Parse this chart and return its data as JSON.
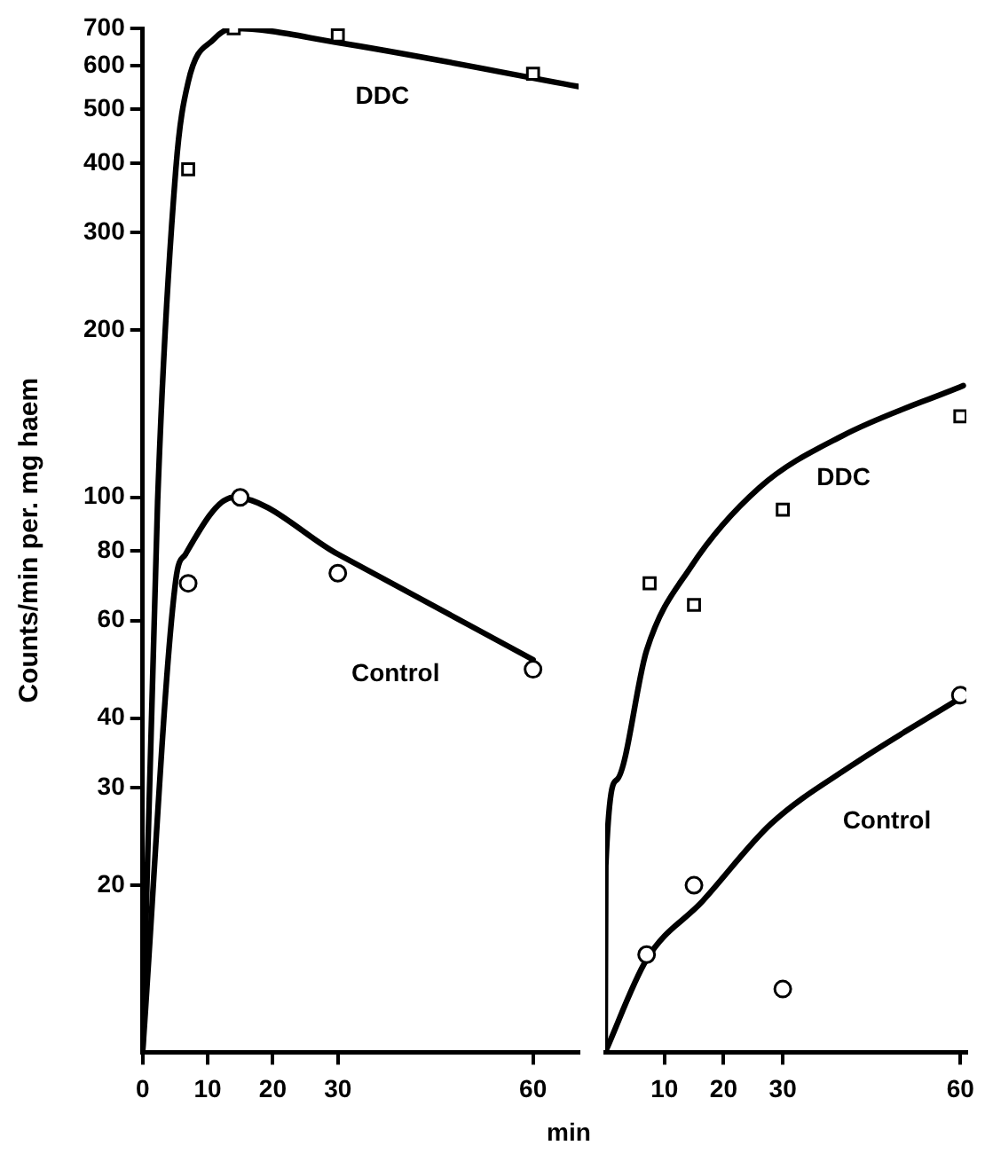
{
  "chart_data": [
    {
      "type": "scatter",
      "ylabel": "Counts/min per. mg haem",
      "xlabel": "min",
      "log": "y",
      "grid": false,
      "legend": false,
      "xlim": [
        0,
        67
      ],
      "xticks": [
        0,
        10,
        20,
        30,
        60
      ],
      "ylim": [
        10,
        700
      ],
      "yticks": [
        20,
        30,
        40,
        60,
        80,
        100,
        200,
        300,
        400,
        500,
        600,
        700
      ],
      "series": [
        {
          "type": "scatter",
          "marker": "square",
          "color": "#000000",
          "x": [
            7,
            14,
            30,
            60
          ],
          "values": [
            390,
            700,
            680,
            580
          ]
        },
        {
          "type": "scatter",
          "marker": "circle",
          "color": "#000000",
          "x": [
            7,
            15,
            30,
            60
          ],
          "values": [
            70,
            100,
            73,
            49
          ]
        },
        {
          "type": "line",
          "marker": "none",
          "name": "DDC",
          "color": "#000000",
          "x": [
            0,
            2.3,
            5.1,
            7,
            11,
            14,
            30,
            67
          ],
          "values": [
            10,
            98,
            390,
            560,
            670,
            700,
            660,
            550
          ]
        },
        {
          "type": "line",
          "marker": "none",
          "name": "Control",
          "color": "#000000",
          "x": [
            0,
            5.1,
            6.6,
            14,
            30,
            60
          ],
          "values": [
            10,
            71,
            79,
            100,
            79,
            51
          ]
        }
      ]
    },
    {
      "type": "scatter",
      "log": "y",
      "grid": false,
      "legend": false,
      "tick_labels": "x",
      "xlim": [
        0,
        61
      ],
      "xticks": [
        10,
        20,
        30,
        60
      ],
      "ylim": [
        10,
        700
      ],
      "series": [
        {
          "type": "scatter",
          "marker": "square",
          "color": "#000000",
          "x": [
            7.5,
            15,
            30,
            60
          ],
          "values": [
            70,
            64,
            95,
            140
          ]
        },
        {
          "type": "scatter",
          "marker": "circle",
          "color": "#000000",
          "x": [
            7,
            15,
            30,
            60
          ],
          "values": [
            15,
            20,
            13,
            44
          ]
        },
        {
          "type": "line",
          "marker": "none",
          "name": "DDC",
          "color": "#000000",
          "x": [
            0,
            0.1,
            2,
            7,
            14.5,
            26,
            40,
            60.5
          ],
          "values": [
            10,
            21.7,
            31,
            53,
            75,
            104,
            129,
            159
          ]
        },
        {
          "type": "line",
          "marker": "none",
          "name": "Control",
          "color": "#000000",
          "x": [
            0,
            7,
            16.4,
            28,
            41.5,
            60.5
          ],
          "values": [
            10,
            14.7,
            18.7,
            25.8,
            32.8,
            43.8
          ]
        }
      ]
    }
  ]
}
